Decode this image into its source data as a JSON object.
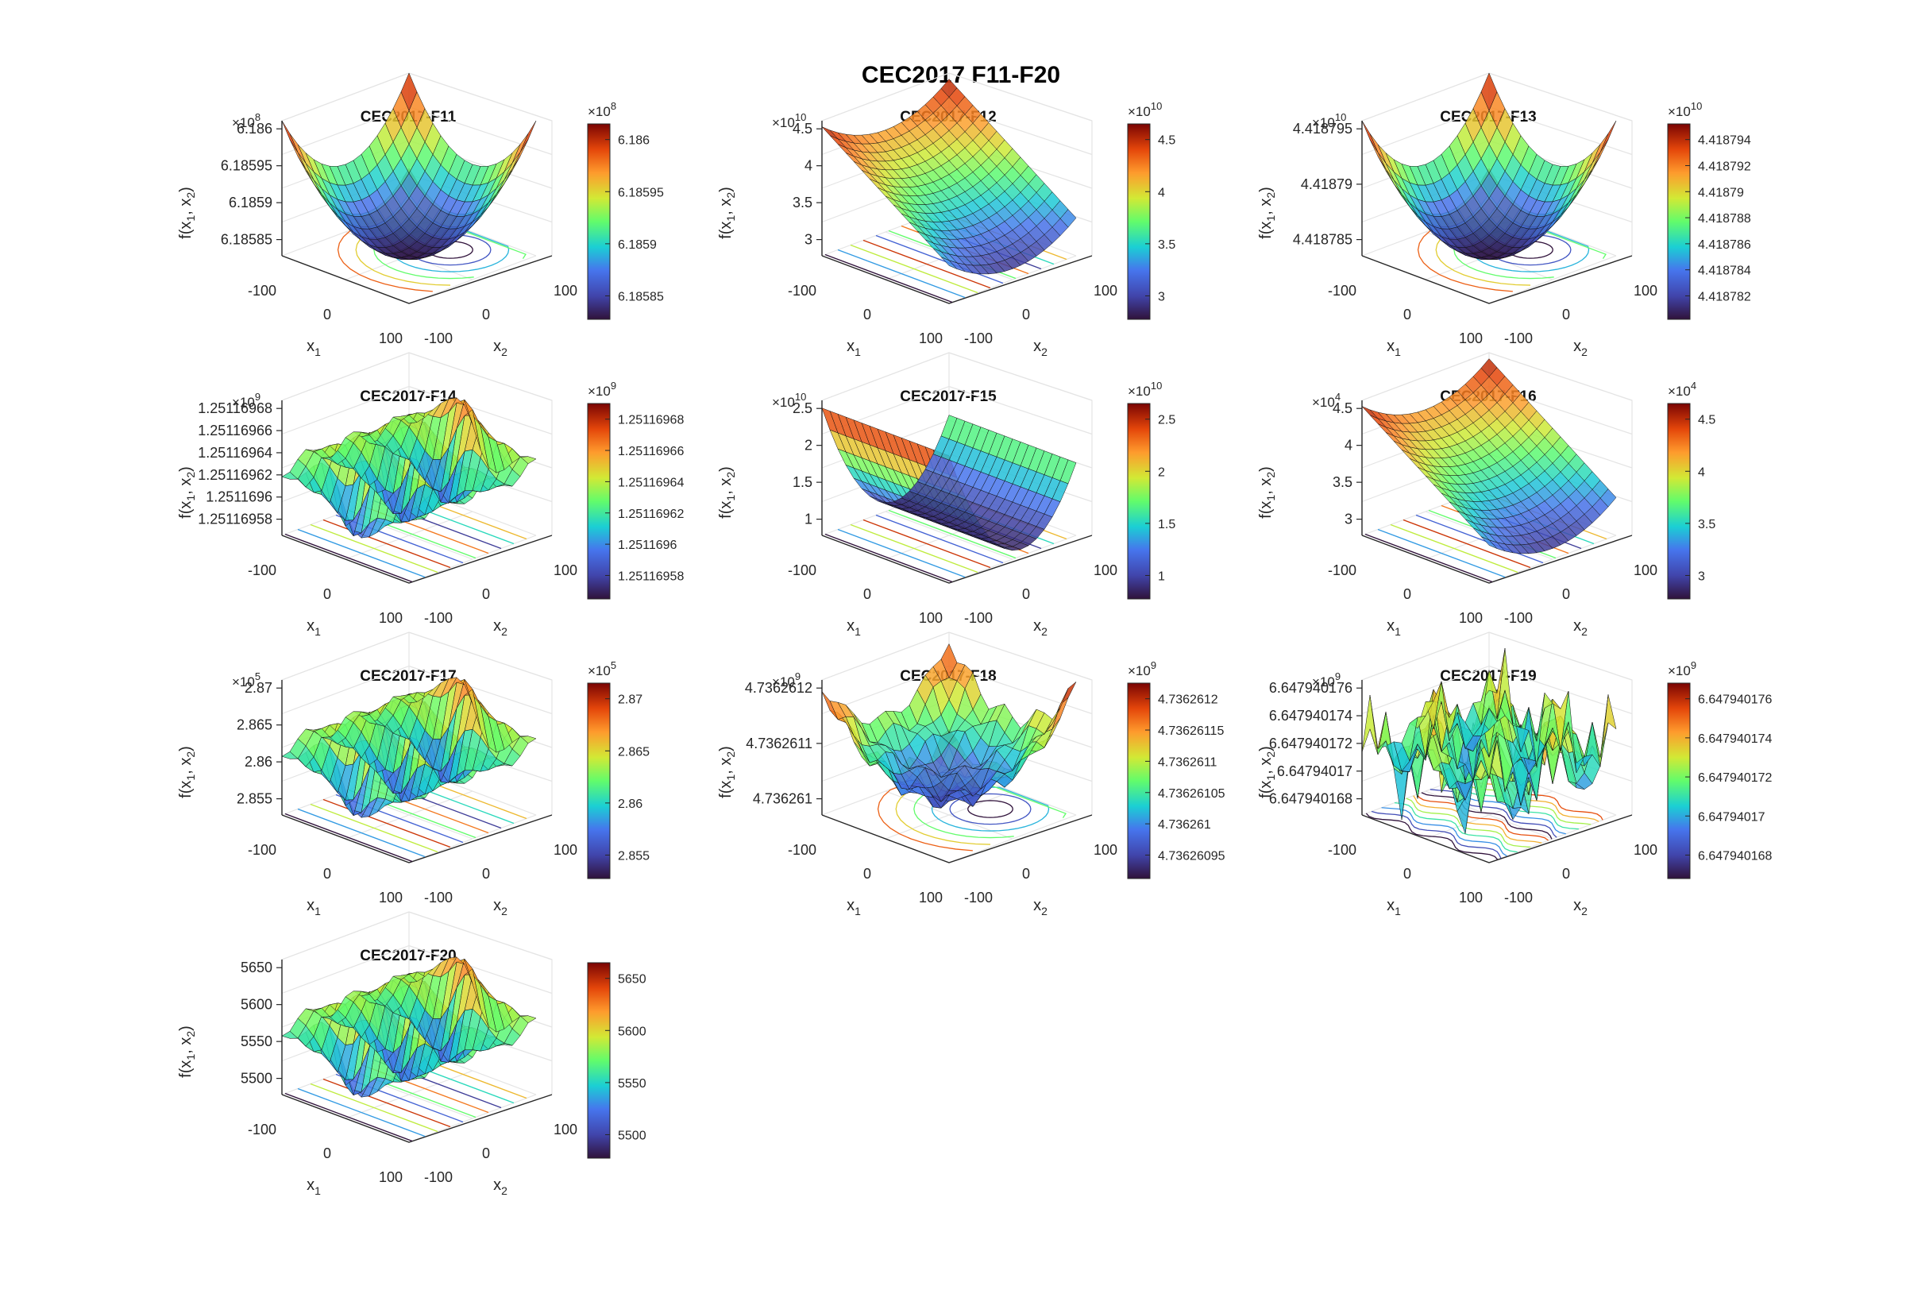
{
  "figure": {
    "title": "CEC2017 F11-F20"
  },
  "chart_data": [
    {
      "type": "surface",
      "title": "CEC2017-F11",
      "xlabel": "x1",
      "ylabel": "x2",
      "zlabel": "f(x1, x2)",
      "x_ticks": [
        "-100",
        "0",
        "100"
      ],
      "y_ticks": [
        "-100",
        "0",
        "100"
      ],
      "z_multiplier": "×10^8",
      "z_ticks": [
        "6.18585",
        "6.1859",
        "6.18595",
        "6.186"
      ],
      "colorbar": {
        "multiplier": "×10^8",
        "ticks": [
          "6.18585",
          "6.1859",
          "6.18595",
          "6.186"
        ]
      },
      "shape": "bowl"
    },
    {
      "type": "surface",
      "title": "CEC2017-F12",
      "xlabel": "x1",
      "ylabel": "x2",
      "zlabel": "f(x1, x2)",
      "x_ticks": [
        "-100",
        "0",
        "100"
      ],
      "y_ticks": [
        "-100",
        "0",
        "100"
      ],
      "z_multiplier": "×10^10",
      "z_ticks": [
        "3",
        "3.5",
        "4",
        "4.5"
      ],
      "colorbar": {
        "multiplier": "×10^10",
        "ticks": [
          "3",
          "3.5",
          "4",
          "4.5"
        ]
      },
      "shape": "slope"
    },
    {
      "type": "surface",
      "title": "CEC2017-F13",
      "xlabel": "x1",
      "ylabel": "x2",
      "zlabel": "f(x1, x2)",
      "x_ticks": [
        "-100",
        "0",
        "100"
      ],
      "y_ticks": [
        "-100",
        "0",
        "100"
      ],
      "z_multiplier": "×10^10",
      "z_ticks": [
        "4.418785",
        "4.41879",
        "4.418795"
      ],
      "colorbar": {
        "multiplier": "×10^10",
        "ticks": [
          "4.418782",
          "4.418784",
          "4.418786",
          "4.418788",
          "4.41879",
          "4.418792",
          "4.418794"
        ]
      },
      "shape": "bowl"
    },
    {
      "type": "surface",
      "title": "CEC2017-F14",
      "xlabel": "x1",
      "ylabel": "x2",
      "zlabel": "f(x1, x2)",
      "x_ticks": [
        "-100",
        "0",
        "100"
      ],
      "y_ticks": [
        "-100",
        "0",
        "100"
      ],
      "z_multiplier": "×10^9",
      "z_ticks": [
        "1.25116958",
        "1.2511696",
        "1.25116962",
        "1.25116964",
        "1.25116966",
        "1.25116968"
      ],
      "colorbar": {
        "multiplier": "×10^9",
        "ticks": [
          "1.25116958",
          "1.2511696",
          "1.25116962",
          "1.25116964",
          "1.25116966",
          "1.25116968"
        ]
      },
      "shape": "ridges"
    },
    {
      "type": "surface",
      "title": "CEC2017-F15",
      "xlabel": "x1",
      "ylabel": "x2",
      "zlabel": "f(x1, x2)",
      "x_ticks": [
        "-100",
        "0",
        "100"
      ],
      "y_ticks": [
        "-100",
        "0",
        "100"
      ],
      "z_multiplier": "×10^10",
      "z_ticks": [
        "1",
        "1.5",
        "2",
        "2.5"
      ],
      "colorbar": {
        "multiplier": "×10^10",
        "ticks": [
          "1",
          "1.5",
          "2",
          "2.5"
        ]
      },
      "shape": "valley"
    },
    {
      "type": "surface",
      "title": "CEC2017-F16",
      "xlabel": "x1",
      "ylabel": "x2",
      "zlabel": "f(x1, x2)",
      "x_ticks": [
        "-100",
        "0",
        "100"
      ],
      "y_ticks": [
        "-100",
        "0",
        "100"
      ],
      "z_multiplier": "×10^4",
      "z_ticks": [
        "3",
        "3.5",
        "4",
        "4.5"
      ],
      "colorbar": {
        "multiplier": "×10^4",
        "ticks": [
          "3",
          "3.5",
          "4",
          "4.5"
        ]
      },
      "shape": "slope"
    },
    {
      "type": "surface",
      "title": "CEC2017-F17",
      "xlabel": "x1",
      "ylabel": "x2",
      "zlabel": "f(x1, x2)",
      "x_ticks": [
        "-100",
        "0",
        "100"
      ],
      "y_ticks": [
        "-100",
        "0",
        "100"
      ],
      "z_multiplier": "×10^5",
      "z_ticks": [
        "2.855",
        "2.86",
        "2.865",
        "2.87"
      ],
      "colorbar": {
        "multiplier": "×10^5",
        "ticks": [
          "2.855",
          "2.86",
          "2.865",
          "2.87"
        ]
      },
      "shape": "ridges"
    },
    {
      "type": "surface",
      "title": "CEC2017-F18",
      "xlabel": "x1",
      "ylabel": "x2",
      "zlabel": "f(x1, x2)",
      "x_ticks": [
        "-100",
        "0",
        "100"
      ],
      "y_ticks": [
        "-100",
        "0",
        "100"
      ],
      "z_multiplier": "×10^9",
      "z_ticks": [
        "4.736261",
        "4.7362611",
        "4.7362612"
      ],
      "colorbar": {
        "multiplier": "×10^9",
        "ticks": [
          "4.73626095",
          "4.736261",
          "4.73626105",
          "4.7362611",
          "4.73626115",
          "4.7362612"
        ]
      },
      "shape": "wavybowl"
    },
    {
      "type": "surface",
      "title": "CEC2017-F19",
      "xlabel": "x1",
      "ylabel": "x2",
      "zlabel": "f(x1, x2)",
      "x_ticks": [
        "-100",
        "0",
        "100"
      ],
      "y_ticks": [
        "-100",
        "0",
        "100"
      ],
      "z_multiplier": "×10^9",
      "z_ticks": [
        "6.647940168",
        "6.64794017",
        "6.647940172",
        "6.647940174",
        "6.647940176"
      ],
      "colorbar": {
        "multiplier": "×10^9",
        "ticks": [
          "6.647940168",
          "6.64794017",
          "6.647940172",
          "6.647940174",
          "6.647940176"
        ]
      },
      "shape": "rough"
    },
    {
      "type": "surface",
      "title": "CEC2017-F20",
      "xlabel": "x1",
      "ylabel": "x2",
      "zlabel": "f(x1, x2)",
      "x_ticks": [
        "-100",
        "0",
        "100"
      ],
      "y_ticks": [
        "-100",
        "0",
        "100"
      ],
      "z_multiplier": "",
      "z_ticks": [
        "5500",
        "5550",
        "5600",
        "5650"
      ],
      "colorbar": {
        "multiplier": "",
        "ticks": [
          "5500",
          "5550",
          "5600",
          "5650"
        ]
      },
      "shape": "ridges"
    }
  ]
}
